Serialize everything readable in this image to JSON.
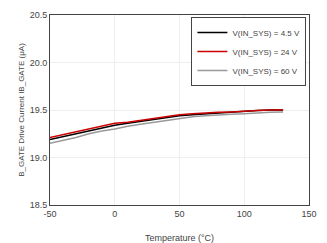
{
  "chart_data": {
    "type": "line",
    "xlabel": "Temperature (°C)",
    "ylabel": "B_GATE Drive Current IB_GATE (μA)",
    "x": [
      -50,
      -40,
      -30,
      -20,
      -10,
      0,
      10,
      20,
      30,
      40,
      50,
      60,
      70,
      80,
      90,
      100,
      110,
      120,
      130
    ],
    "series": [
      {
        "name": "V(IN_SYS) = 4.5 V",
        "color": "#000000",
        "values": [
          19.19,
          19.22,
          19.25,
          19.28,
          19.31,
          19.34,
          19.36,
          19.38,
          19.4,
          19.42,
          19.44,
          19.45,
          19.46,
          19.47,
          19.48,
          19.49,
          19.495,
          19.5,
          19.5
        ]
      },
      {
        "name": "V(IN_SYS) = 24 V",
        "color": "#cc0000",
        "values": [
          19.21,
          19.24,
          19.27,
          19.3,
          19.33,
          19.36,
          19.37,
          19.39,
          19.41,
          19.43,
          19.45,
          19.46,
          19.47,
          19.475,
          19.48,
          19.49,
          19.495,
          19.5,
          19.5
        ]
      },
      {
        "name": "V(IN_SYS) = 60 V",
        "color": "#999999",
        "values": [
          19.15,
          19.18,
          19.21,
          19.25,
          19.28,
          19.3,
          19.33,
          19.35,
          19.37,
          19.39,
          19.41,
          19.43,
          19.44,
          19.45,
          19.455,
          19.46,
          19.47,
          19.475,
          19.48
        ]
      }
    ],
    "xlim": [
      -50,
      150
    ],
    "ylim": [
      18.5,
      20.5
    ],
    "xticks": [
      -50,
      0,
      50,
      100,
      150
    ],
    "yticks": [
      18.5,
      {
        "value": 19,
        "label": "19.0"
      },
      19.5,
      {
        "value": 20,
        "label": "20.0"
      },
      20.5
    ],
    "grid": true,
    "legend": "upper right"
  }
}
